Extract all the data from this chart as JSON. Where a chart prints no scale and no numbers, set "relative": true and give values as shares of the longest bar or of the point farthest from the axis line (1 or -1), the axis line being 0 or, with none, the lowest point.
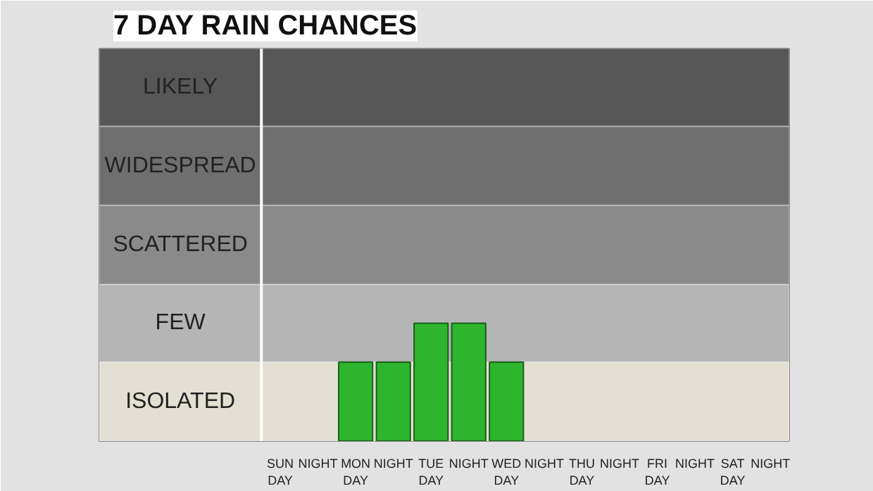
{
  "chart_data": {
    "type": "bar",
    "title": "7 DAY RAIN CHANCES",
    "categories": [
      "SUN\nDAY",
      "NIGHT",
      "MON\nDAY",
      "NIGHT",
      "TUE\nDAY",
      "NIGHT",
      "WED\nDAY",
      "NIGHT",
      "THU\nDAY",
      "NIGHT",
      "FRI\nDAY",
      "NIGHT",
      "SAT\nDAY",
      "NIGHT"
    ],
    "values": [
      null,
      null,
      0.67,
      0.67,
      1,
      1,
      0.67,
      null,
      null,
      null,
      null,
      null,
      null,
      null
    ],
    "color": "#2db52d",
    "relative": true,
    "bands": [
      {
        "axis": "y",
        "from": 0,
        "to": 0.67,
        "label": "ISOLATED",
        "color": "#e3dfd3"
      },
      {
        "axis": "y",
        "from": 0.67,
        "to": 1.33,
        "label": "FEW",
        "color": "#b5b5b5"
      },
      {
        "axis": "y",
        "from": 1.33,
        "to": 2,
        "label": "SCATTERED",
        "color": "#8a8a8a"
      },
      {
        "axis": "y",
        "from": 2,
        "to": 2.67,
        "label": "WIDESPREAD",
        "color": "#6f6f6f"
      },
      {
        "axis": "y",
        "from": 2.67,
        "to": 3.33,
        "label": "LIKELY",
        "color": "#575757"
      }
    ]
  }
}
